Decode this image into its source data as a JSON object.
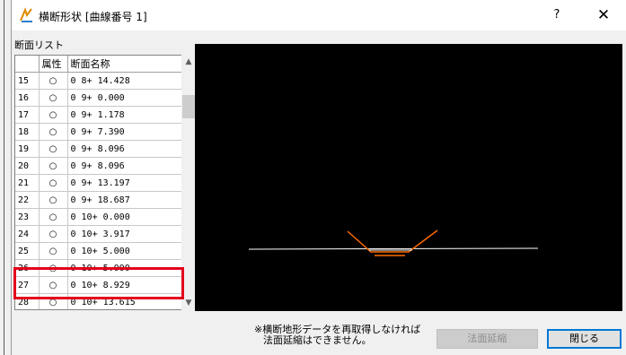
{
  "window": {
    "title": "横断形状 [曲線番号 1]",
    "help_label": "?",
    "close_label": "✕"
  },
  "list_label": "断面リスト",
  "table": {
    "headers": [
      "",
      "属性",
      "断面名称"
    ],
    "rows": [
      {
        "no": "15",
        "attr": "○",
        "name": "0  8+ 14.428"
      },
      {
        "no": "16",
        "attr": "○",
        "name": "0  9+ 0.000"
      },
      {
        "no": "17",
        "attr": "○",
        "name": "0  9+ 1.178"
      },
      {
        "no": "18",
        "attr": "○",
        "name": "0  9+ 7.390"
      },
      {
        "no": "19",
        "attr": "○",
        "name": "0  9+ 8.096"
      },
      {
        "no": "20",
        "attr": "○",
        "name": "0  9+ 8.096"
      },
      {
        "no": "21",
        "attr": "○",
        "name": "0  9+ 13.197"
      },
      {
        "no": "22",
        "attr": "○",
        "name": "0  9+ 18.687"
      },
      {
        "no": "23",
        "attr": "○",
        "name": "0  10+ 0.000"
      },
      {
        "no": "24",
        "attr": "○",
        "name": "0  10+ 3.917"
      },
      {
        "no": "25",
        "attr": "○",
        "name": "0  10+ 5.000"
      },
      {
        "no": "26",
        "attr": "○",
        "name": "0  10+ 5.000"
      },
      {
        "no": "27",
        "attr": "○",
        "name": "0  10+ 8.929"
      },
      {
        "no": "28",
        "attr": "○",
        "name": "0  10+ 13.615"
      }
    ]
  },
  "notice": {
    "line1": "※横断地形データを再取得しなければ",
    "line2": "法面延縮はできません。"
  },
  "buttons": {
    "expand_label": "法面延縮",
    "close_label": "閉じる"
  },
  "colors": {
    "highlight": "#e3001b",
    "canvas_bg": "#000000",
    "ground_line": "#ffffff",
    "slope_line": "#ff6a00"
  }
}
